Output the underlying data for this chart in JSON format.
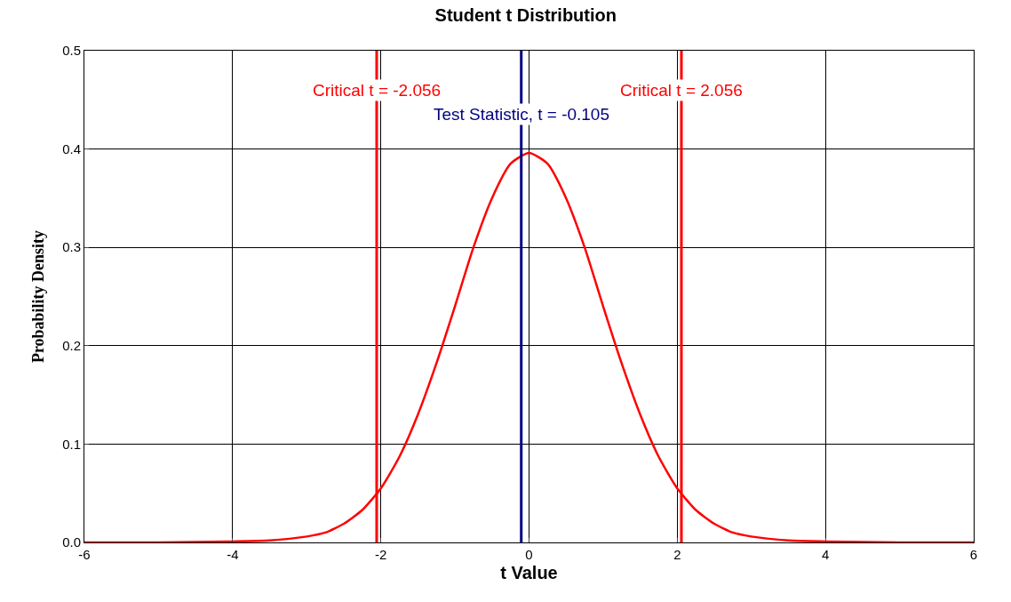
{
  "chart_data": {
    "type": "line",
    "title": "Student t Distribution",
    "xlabel": "t Value",
    "ylabel": "Probability Density",
    "x": [
      -6,
      -5,
      -4,
      -3.5,
      -3,
      -2.75,
      -2.5,
      -2.25,
      -2,
      -1.75,
      -1.5,
      -1.25,
      -1,
      -0.75,
      -0.5,
      -0.25,
      0,
      0.25,
      0.5,
      0.75,
      1,
      1.25,
      1.5,
      1.75,
      2,
      2.25,
      2.5,
      2.75,
      3,
      3.5,
      4,
      5,
      6
    ],
    "series": [
      {
        "color": "#ff0000",
        "values": [
          0,
          0,
          0.001,
          0.002,
          0.006,
          0.01,
          0.019,
          0.033,
          0.055,
          0.087,
          0.13,
          0.182,
          0.24,
          0.3,
          0.35,
          0.385,
          0.396,
          0.385,
          0.35,
          0.3,
          0.24,
          0.182,
          0.13,
          0.087,
          0.055,
          0.033,
          0.019,
          0.01,
          0.006,
          0.002,
          0.001,
          0,
          0
        ]
      }
    ],
    "xlim": [
      -6,
      6
    ],
    "xticks": [
      -6,
      -4,
      -2,
      0,
      2,
      4,
      6
    ],
    "ylim": [
      0,
      0.5
    ],
    "yticks": [
      {
        "value": 0,
        "label": "0.0"
      },
      {
        "value": 0.1,
        "label": "0.1"
      },
      {
        "value": 0.2,
        "label": "0.2"
      },
      {
        "value": 0.3,
        "label": "0.3"
      },
      {
        "value": 0.4,
        "label": "0.4"
      },
      {
        "value": 0.5,
        "label": "0.5"
      }
    ],
    "ref_lines": [
      {
        "axis": "x",
        "value": -2.056,
        "label": "Critical t = -2.056",
        "color": "#ff0000"
      },
      {
        "axis": "x",
        "value": 2.056,
        "label": "Critical t = 2.056",
        "color": "#ff0000"
      },
      {
        "axis": "x",
        "value": -0.105,
        "label": "Test Statistic, t = -0.105",
        "color": "#000080"
      }
    ],
    "grid": true,
    "marker": "none",
    "line_style": "solid"
  }
}
